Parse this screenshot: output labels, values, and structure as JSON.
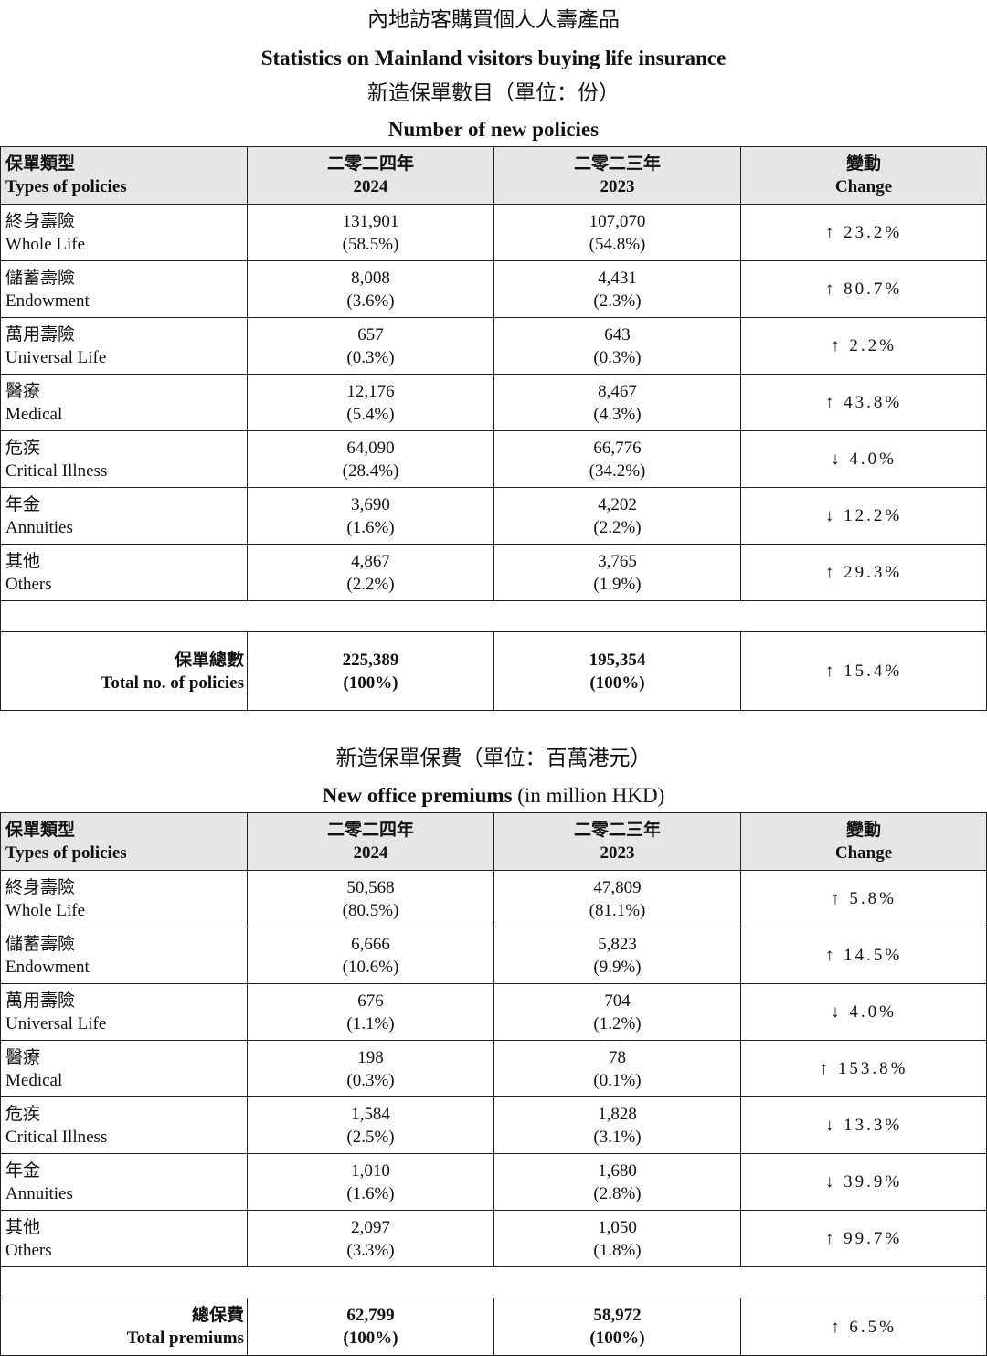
{
  "header": {
    "title_zh": "內地訪客購買個人人壽產品",
    "title_en": "Statistics on Mainland visitors buying life insurance"
  },
  "sections": [
    {
      "subtitle_zh": "新造保單數目（單位：份）",
      "subtitle_en": "Number of new policies",
      "columns": [
        {
          "zh": "保單類型",
          "en": "Types of policies"
        },
        {
          "zh": "二零二四年",
          "en": "2024"
        },
        {
          "zh": "二零二三年",
          "en": "2023"
        },
        {
          "zh": "變動",
          "en": "Change"
        }
      ],
      "rows": [
        {
          "zh": "終身壽險",
          "en": "Whole Life",
          "v2024": "131,901",
          "p2024": "(58.5%)",
          "v2023": "107,070",
          "p2023": "(54.8%)",
          "change": "↑ 23.2%"
        },
        {
          "zh": "儲蓄壽險",
          "en": "Endowment",
          "v2024": "8,008",
          "p2024": "(3.6%)",
          "v2023": "4,431",
          "p2023": "(2.3%)",
          "change": "↑ 80.7%"
        },
        {
          "zh": "萬用壽險",
          "en": "Universal Life",
          "v2024": "657",
          "p2024": "(0.3%)",
          "v2023": "643",
          "p2023": "(0.3%)",
          "change": "↑ 2.2%"
        },
        {
          "zh": "醫療",
          "en": "Medical",
          "v2024": "12,176",
          "p2024": "(5.4%)",
          "v2023": "8,467",
          "p2023": "(4.3%)",
          "change": "↑ 43.8%"
        },
        {
          "zh": "危疾",
          "en": "Critical Illness",
          "v2024": "64,090",
          "p2024": "(28.4%)",
          "v2023": "66,776",
          "p2023": "(34.2%)",
          "change": "↓ 4.0%"
        },
        {
          "zh": "年金",
          "en": "Annuities",
          "v2024": "3,690",
          "p2024": "(1.6%)",
          "v2023": "4,202",
          "p2023": "(2.2%)",
          "change": "↓ 12.2%"
        },
        {
          "zh": "其他",
          "en": "Others",
          "v2024": "4,867",
          "p2024": "(2.2%)",
          "v2023": "3,765",
          "p2023": "(1.9%)",
          "change": "↑ 29.3%"
        }
      ],
      "total": {
        "zh": "保單總數",
        "en": "Total no. of policies",
        "v2024": "225,389",
        "p2024": "(100%)",
        "v2023": "195,354",
        "p2023": "(100%)",
        "change": "↑ 15.4%"
      }
    },
    {
      "subtitle_zh": "新造保單保費（單位：百萬港元）",
      "subtitle_en": "New office premiums",
      "subtitle_en_unit": "(in million HKD)",
      "columns": [
        {
          "zh": "保單類型",
          "en": "Types of policies"
        },
        {
          "zh": "二零二四年",
          "en": "2024"
        },
        {
          "zh": "二零二三年",
          "en": "2023"
        },
        {
          "zh": "變動",
          "en": "Change"
        }
      ],
      "rows": [
        {
          "zh": "終身壽險",
          "en": "Whole Life",
          "v2024": "50,568",
          "p2024": "(80.5%)",
          "v2023": "47,809",
          "p2023": "(81.1%)",
          "change": "↑ 5.8%"
        },
        {
          "zh": "儲蓄壽險",
          "en": "Endowment",
          "v2024": "6,666",
          "p2024": "(10.6%)",
          "v2023": "5,823",
          "p2023": "(9.9%)",
          "change": "↑ 14.5%"
        },
        {
          "zh": "萬用壽險",
          "en": "Universal Life",
          "v2024": "676",
          "p2024": "(1.1%)",
          "v2023": "704",
          "p2023": "(1.2%)",
          "change": "↓ 4.0%"
        },
        {
          "zh": "醫療",
          "en": "Medical",
          "v2024": "198",
          "p2024": "(0.3%)",
          "v2023": "78",
          "p2023": "(0.1%)",
          "change": "↑ 153.8%"
        },
        {
          "zh": "危疾",
          "en": "Critical Illness",
          "v2024": "1,584",
          "p2024": "(2.5%)",
          "v2023": "1,828",
          "p2023": "(3.1%)",
          "change": "↓ 13.3%"
        },
        {
          "zh": "年金",
          "en": "Annuities",
          "v2024": "1,010",
          "p2024": "(1.6%)",
          "v2023": "1,680",
          "p2023": "(2.8%)",
          "change": "↓ 39.9%"
        },
        {
          "zh": "其他",
          "en": "Others",
          "v2024": "2,097",
          "p2024": "(3.3%)",
          "v2023": "1,050",
          "p2023": "(1.8%)",
          "change": "↑ 99.7%"
        }
      ],
      "total": {
        "zh": "總保費",
        "en": "Total premiums",
        "v2024": "62,799",
        "p2024": "(100%)",
        "v2023": "58,972",
        "p2023": "(100%)",
        "change": "↑ 6.5%"
      }
    }
  ]
}
